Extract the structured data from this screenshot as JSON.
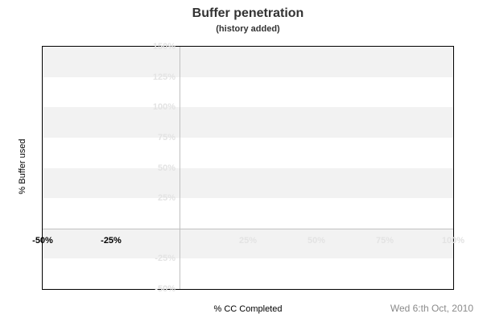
{
  "footer": {
    "date": "Wed 6:th Oct, 2010"
  },
  "chart_data": {
    "type": "line",
    "title": "Buffer penetration",
    "subtitle": "(history added)",
    "xlabel": "% CC Completed",
    "ylabel": "% Buffer used",
    "xlim": [
      -50,
      100
    ],
    "ylim": [
      -50,
      150
    ],
    "x_ticks": [
      {
        "v": -50,
        "label": "-50%",
        "strong": true
      },
      {
        "v": -25,
        "label": "-25%",
        "strong": true
      },
      {
        "v": 25,
        "label": "25%",
        "strong": false
      },
      {
        "v": 50,
        "label": "50%",
        "strong": false
      },
      {
        "v": 75,
        "label": "75%",
        "strong": false
      },
      {
        "v": 100,
        "label": "100%",
        "strong": false
      }
    ],
    "y_ticks": [
      {
        "v": 150,
        "label": "150%"
      },
      {
        "v": 125,
        "label": "125%"
      },
      {
        "v": 100,
        "label": "100%"
      },
      {
        "v": 75,
        "label": "75%"
      },
      {
        "v": 50,
        "label": "50%"
      },
      {
        "v": 25,
        "label": "25%"
      },
      {
        "v": -25,
        "label": "-25%"
      },
      {
        "v": -50,
        "label": "-50%"
      }
    ],
    "shaded_bands": [
      [
        -25,
        0
      ],
      [
        25,
        50
      ],
      [
        75,
        100
      ],
      [
        125,
        150
      ]
    ],
    "zero_gridlines": {
      "x": 0,
      "y": 0
    },
    "series": [],
    "legend": false,
    "grid": "alternating-horizontal-bands",
    "colors": {
      "band": "#f2f2f2",
      "grid": "#c0c0c0",
      "faint_label": "#e3e3e3",
      "strong_label": "#000000",
      "border": "#000000",
      "title": "#333333",
      "date": "#8a8a8a"
    }
  }
}
